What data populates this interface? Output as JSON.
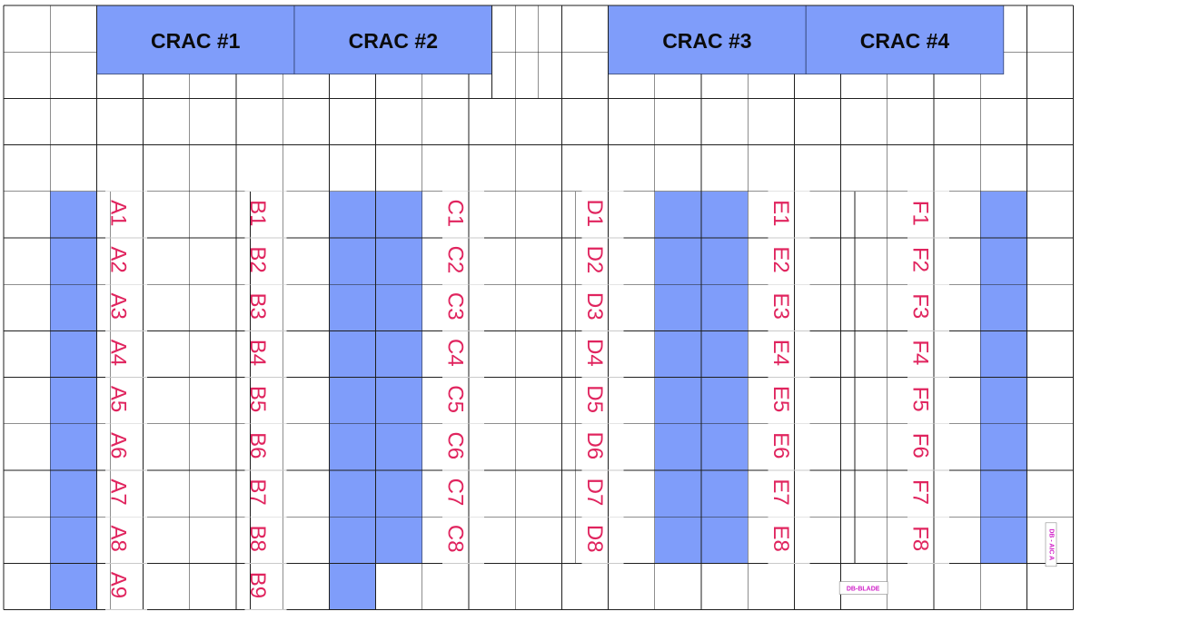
{
  "crac_units": [
    {
      "id": "crac-1",
      "label": "CRAC #1"
    },
    {
      "id": "crac-2",
      "label": "CRAC #2"
    },
    {
      "id": "crac-3",
      "label": "CRAC #3"
    },
    {
      "id": "crac-4",
      "label": "CRAC #4"
    }
  ],
  "rack_rows": [
    {
      "row": "A",
      "labels": [
        "A1",
        "A2",
        "A3",
        "A4",
        "A5",
        "A6",
        "A7",
        "A8",
        "A9"
      ]
    },
    {
      "row": "B",
      "labels": [
        "B1",
        "B2",
        "B3",
        "B4",
        "B5",
        "B6",
        "B7",
        "B8",
        "B9"
      ]
    },
    {
      "row": "C",
      "labels": [
        "C1",
        "C2",
        "C3",
        "C4",
        "C5",
        "C6",
        "C7",
        "C8"
      ]
    },
    {
      "row": "D",
      "labels": [
        "D1",
        "D2",
        "D3",
        "D4",
        "D5",
        "D6",
        "D7",
        "D8"
      ]
    },
    {
      "row": "E",
      "labels": [
        "E1",
        "E2",
        "E3",
        "E4",
        "E5",
        "E6",
        "E7",
        "E8"
      ]
    },
    {
      "row": "F",
      "labels": [
        "F1",
        "F2",
        "F3",
        "F4",
        "F5",
        "F6",
        "F7",
        "F8"
      ]
    }
  ],
  "labels": {
    "db_blade": "DB-BLADE",
    "db_side": "DB - AIC A"
  },
  "colors": {
    "perforated_tile": "#7f9dfa",
    "crac": "#7f9dfa",
    "rack_text": "#e0245e",
    "grid": "#1e1e1e",
    "db_label": "#d020c8"
  }
}
